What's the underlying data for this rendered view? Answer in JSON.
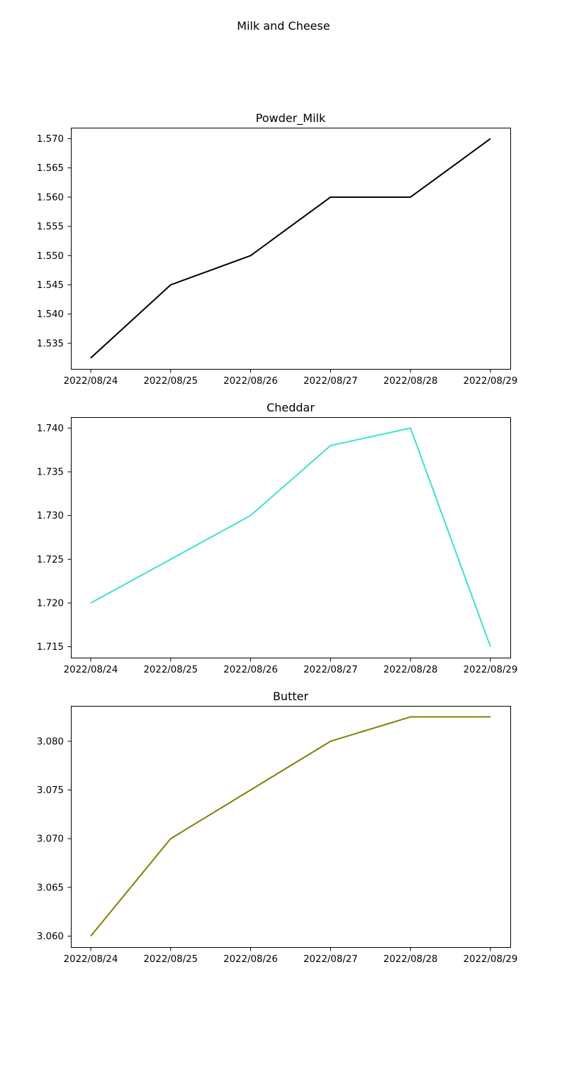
{
  "figure": {
    "suptitle": "Milk and Cheese"
  },
  "chart_data": [
    {
      "type": "line",
      "title": "Powder_Milk",
      "xlabel": "",
      "ylabel": "",
      "x": [
        "2022/08/24",
        "2022/08/25",
        "2022/08/26",
        "2022/08/27",
        "2022/08/28",
        "2022/08/29"
      ],
      "series": [
        {
          "color": "#000000",
          "values": [
            1.5325,
            1.545,
            1.55,
            1.56,
            1.56,
            1.57
          ]
        }
      ],
      "ylim": [
        1.53063,
        1.57187
      ],
      "yticks": [
        1.535,
        1.54,
        1.545,
        1.55,
        1.555,
        1.56,
        1.565,
        1.57
      ],
      "ytick_labels": [
        "1.535",
        "1.540",
        "1.545",
        "1.550",
        "1.555",
        "1.560",
        "1.565",
        "1.570"
      ],
      "grid": false,
      "legend": "none"
    },
    {
      "type": "line",
      "title": "Cheddar",
      "xlabel": "",
      "ylabel": "",
      "x": [
        "2022/08/24",
        "2022/08/25",
        "2022/08/26",
        "2022/08/27",
        "2022/08/28",
        "2022/08/29"
      ],
      "series": [
        {
          "color": "#40e0d0",
          "values": [
            1.72,
            1.725,
            1.73,
            1.738,
            1.74,
            1.715
          ]
        }
      ],
      "ylim": [
        1.71375,
        1.74125
      ],
      "yticks": [
        1.715,
        1.72,
        1.725,
        1.73,
        1.735,
        1.74
      ],
      "ytick_labels": [
        "1.715",
        "1.720",
        "1.725",
        "1.730",
        "1.735",
        "1.740"
      ],
      "grid": false,
      "legend": "none"
    },
    {
      "type": "line",
      "title": "Butter",
      "xlabel": "",
      "ylabel": "",
      "x": [
        "2022/08/24",
        "2022/08/25",
        "2022/08/26",
        "2022/08/27",
        "2022/08/28",
        "2022/08/29"
      ],
      "series": [
        {
          "color": "#808000",
          "values": [
            3.06,
            3.07,
            3.075,
            3.08,
            3.0825,
            3.0825
          ]
        }
      ],
      "ylim": [
        3.05887,
        3.08363
      ],
      "yticks": [
        3.06,
        3.065,
        3.07,
        3.075,
        3.08
      ],
      "ytick_labels": [
        "3.060",
        "3.065",
        "3.070",
        "3.075",
        "3.080"
      ],
      "grid": false,
      "legend": "none"
    }
  ]
}
